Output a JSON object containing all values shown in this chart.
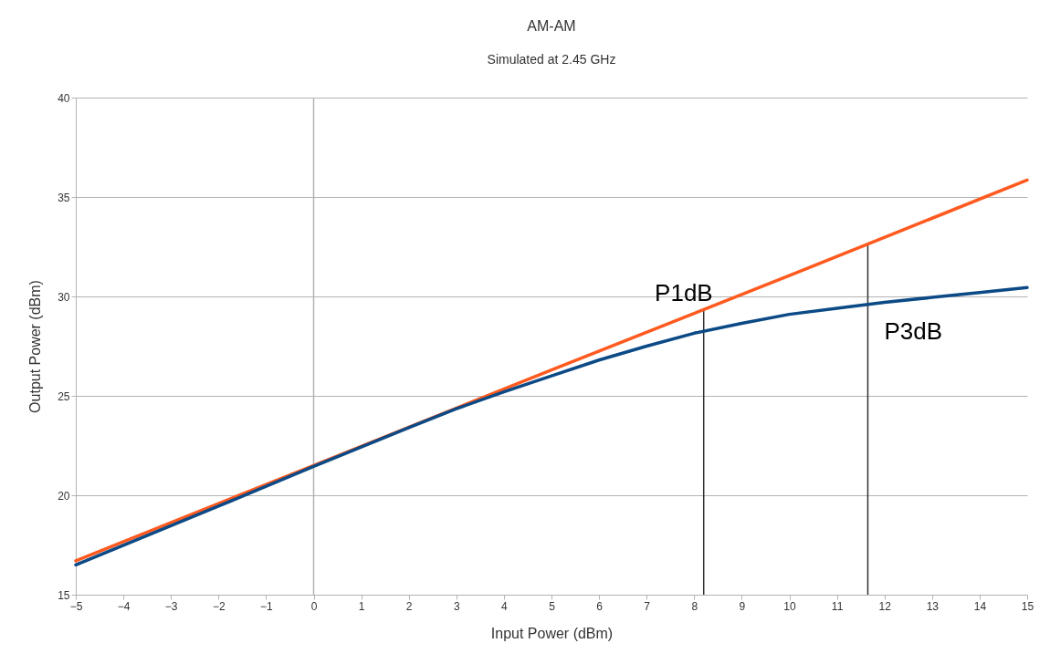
{
  "chart_data": {
    "type": "line",
    "title": "AM-AM",
    "subtitle": "Simulated at 2.45 GHz",
    "xlabel": "Input Power (dBm)",
    "ylabel": "Output Power (dBm)",
    "series": [
      {
        "color": "#ff5a1f",
        "x": [
          -5,
          0,
          5,
          10,
          15
        ],
        "values": [
          16.7,
          21.5,
          26.3,
          31.05,
          35.85
        ]
      },
      {
        "color": "#0c4a86",
        "x": [
          -5,
          -2,
          0,
          2,
          3,
          4,
          5,
          6,
          7,
          8,
          9,
          10,
          11,
          12,
          13,
          14,
          15
        ],
        "values": [
          16.5,
          19.45,
          21.45,
          23.4,
          24.35,
          25.2,
          26.0,
          26.8,
          27.5,
          28.15,
          28.65,
          29.1,
          29.4,
          29.7,
          29.95,
          30.2,
          30.45
        ]
      }
    ],
    "xlim": [
      -5,
      15
    ],
    "xticks": [
      -5,
      -4,
      -3,
      -2,
      -1,
      0,
      1,
      2,
      3,
      4,
      5,
      6,
      7,
      8,
      9,
      10,
      11,
      12,
      13,
      14,
      15
    ],
    "ylim": [
      15,
      40
    ],
    "yticks": [
      15,
      20,
      25,
      30,
      35,
      40
    ],
    "grid": "y",
    "marker": "none",
    "line_style": "solid",
    "ref_lines": [
      {
        "axis": "x",
        "value": 0,
        "color": "#b3b3b3"
      },
      {
        "axis": "x",
        "value": 8.2,
        "color": "#333333",
        "label": "P1dB"
      },
      {
        "axis": "x",
        "value": 11.65,
        "color": "#333333",
        "label": "P3dB"
      }
    ]
  }
}
